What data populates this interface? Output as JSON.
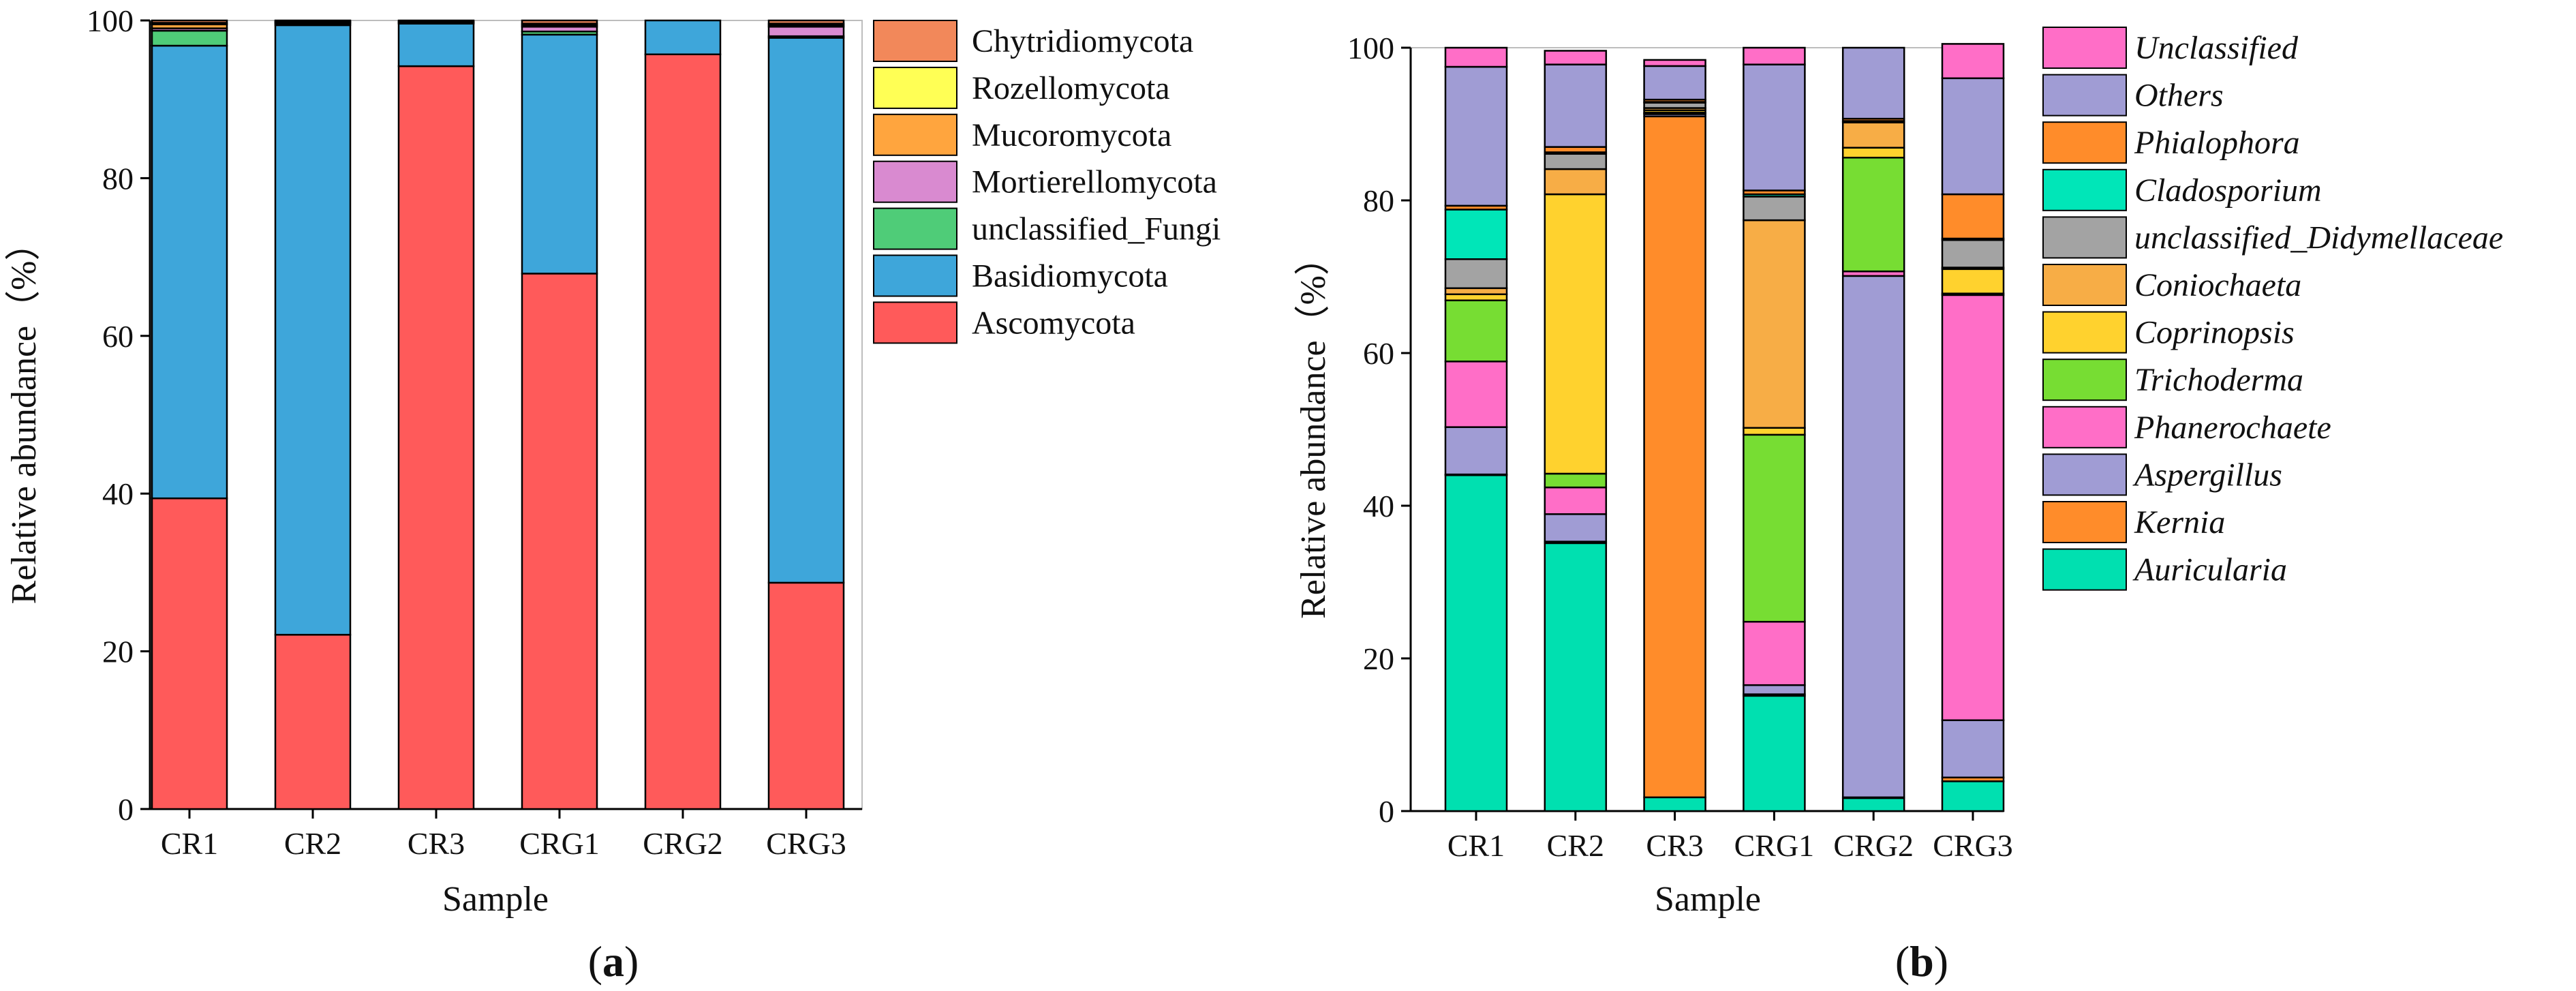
{
  "chart_data": [
    {
      "id": "a",
      "type": "bar",
      "stacked": true,
      "panel_label_open": "(",
      "panel_label_letter": "a",
      "panel_label_close": ")",
      "xlabel": "Sample",
      "ylabel": "Relative abundance（%）",
      "ylim": [
        0,
        100
      ],
      "yticks": [
        0,
        20,
        40,
        60,
        80,
        100
      ],
      "grid": false,
      "legend_position": "right",
      "legend_italic": false,
      "categories": [
        "CR1",
        "CR2",
        "CR3",
        "CRG1",
        "CRG2",
        "CRG3"
      ],
      "series": [
        {
          "name": "Ascomycota",
          "color": "#ff5a5a",
          "values": [
            39.4,
            22.1,
            94.2,
            67.9,
            95.7,
            28.7
          ]
        },
        {
          "name": "Basidiomycota",
          "color": "#3ea6da",
          "values": [
            57.4,
            77.3,
            5.4,
            30.3,
            4.3,
            69.1
          ]
        },
        {
          "name": "unclassified_Fungi",
          "color": "#4fcc78",
          "values": [
            1.9,
            0.2,
            0.1,
            0.4,
            0.0,
            0.2
          ]
        },
        {
          "name": "Mortierellomycota",
          "color": "#d98ad0",
          "values": [
            0.3,
            0.1,
            0.1,
            0.6,
            0.0,
            1.2
          ]
        },
        {
          "name": "Mucoromycota",
          "color": "#ffa53e",
          "values": [
            0.5,
            0.1,
            0.1,
            0.2,
            0.0,
            0.2
          ]
        },
        {
          "name": "Rozellomycota",
          "color": "#ffff55",
          "values": [
            0.2,
            0.1,
            0.0,
            0.2,
            0.0,
            0.2
          ]
        },
        {
          "name": "Chytridiomycota",
          "color": "#f2885a",
          "values": [
            0.3,
            0.1,
            0.1,
            0.4,
            0.0,
            0.4
          ]
        }
      ]
    },
    {
      "id": "b",
      "type": "bar",
      "stacked": true,
      "panel_label_open": "(",
      "panel_label_letter": "b",
      "panel_label_close": ")",
      "xlabel": "Sample",
      "ylabel": "Relative abundance（%）",
      "ylim": [
        0,
        100
      ],
      "yticks": [
        0,
        20,
        40,
        60,
        80,
        100
      ],
      "grid": false,
      "legend_position": "right",
      "legend_italic": true,
      "categories": [
        "CR1",
        "CR2",
        "CR3",
        "CRG1",
        "CRG2",
        "CRG3"
      ],
      "series": [
        {
          "name": "Auricularia",
          "color": "#00e0b0",
          "values": [
            44.0,
            35.1,
            1.8,
            15.1,
            1.7,
            3.9
          ]
        },
        {
          "name": "Kernia",
          "color": "#ff8c2a",
          "values": [
            0.1,
            0.2,
            89.2,
            0.2,
            0.1,
            0.5
          ]
        },
        {
          "name": "Aspergillus",
          "color": "#a09cd4",
          "values": [
            6.2,
            3.6,
            0.3,
            1.2,
            68.3,
            7.5
          ]
        },
        {
          "name": "Phanerochaete",
          "color": "#ff6ec7",
          "values": [
            8.6,
            3.5,
            0.1,
            8.3,
            0.6,
            55.7
          ]
        },
        {
          "name": "Trichoderma",
          "color": "#77dd33",
          "values": [
            8.0,
            1.8,
            0.1,
            24.5,
            14.9,
            0.2
          ]
        },
        {
          "name": "Coprinopsis",
          "color": "#ffd22e",
          "values": [
            0.8,
            36.6,
            0.3,
            0.9,
            1.3,
            3.2
          ]
        },
        {
          "name": "Coniochaeta",
          "color": "#f7ad46",
          "values": [
            0.8,
            3.3,
            0.3,
            27.2,
            3.3,
            0.2
          ]
        },
        {
          "name": "unclassified_Didymellaceae",
          "color": "#a3a3a3",
          "values": [
            3.8,
            2.0,
            0.7,
            3.1,
            0.1,
            3.6
          ]
        },
        {
          "name": "Cladosporium",
          "color": "#00e6b8",
          "values": [
            6.5,
            0.2,
            0.1,
            0.3,
            0.1,
            0.2
          ]
        },
        {
          "name": "Phialophora",
          "color": "#ff8c2a",
          "values": [
            0.5,
            0.7,
            0.3,
            0.5,
            0.3,
            5.8
          ]
        },
        {
          "name": "Others",
          "color": "#a09cd4",
          "values": [
            18.2,
            10.8,
            4.4,
            16.5,
            9.3,
            15.2
          ]
        },
        {
          "name": "Unclassified",
          "color": "#ff6ec7",
          "values": [
            2.5,
            1.8,
            0.8,
            2.2,
            0.0,
            4.5
          ]
        }
      ]
    }
  ]
}
